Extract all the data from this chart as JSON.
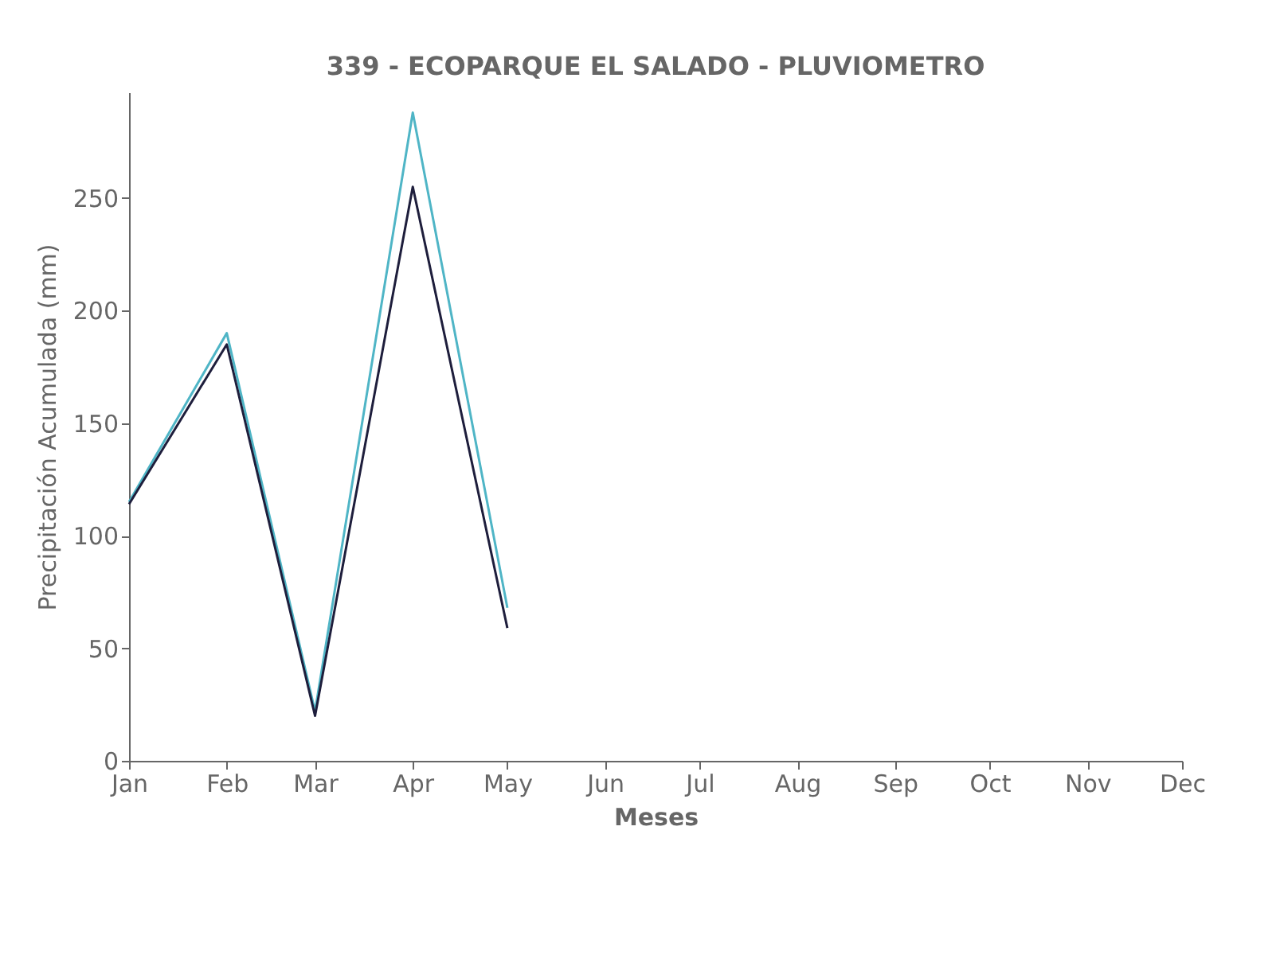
{
  "chart_data": {
    "type": "line",
    "title": "339 - ECOPARQUE EL SALADO - PLUVIOMETRO",
    "xlabel": "Meses",
    "ylabel": "Precipitación Acumulada (mm)",
    "x": [
      "--01-01",
      "--02-01",
      "--03-01",
      "--04-01",
      "--05-01"
    ],
    "series": [
      {
        "color": "#4fb5c6",
        "values": [
          115,
          190,
          22,
          288,
          68
        ]
      },
      {
        "color": "#1e1e3c",
        "values": [
          114,
          185,
          20,
          255,
          59
        ]
      }
    ],
    "xlim": [
      "--01-01",
      "--12-01"
    ],
    "xticks": [
      {
        "value": "--01-01",
        "label": "Jan"
      },
      {
        "value": "--02-01",
        "label": "Feb"
      },
      {
        "value": "--03-01",
        "label": "Mar"
      },
      {
        "value": "--04-01",
        "label": "Apr"
      },
      {
        "value": "--05-01",
        "label": "May"
      },
      {
        "value": "--06-01",
        "label": "Jun"
      },
      {
        "value": "--07-01",
        "label": "Jul"
      },
      {
        "value": "--08-01",
        "label": "Aug"
      },
      {
        "value": "--09-01",
        "label": "Sep"
      },
      {
        "value": "--10-01",
        "label": "Oct"
      },
      {
        "value": "--11-01",
        "label": "Nov"
      },
      {
        "value": "--12-01",
        "label": "Dec"
      }
    ],
    "ylim": [
      0,
      297
    ],
    "yticks": [
      0,
      50,
      100,
      150,
      200,
      250
    ],
    "grid": false,
    "legend": false,
    "marker": "none",
    "line_style": "solid"
  }
}
